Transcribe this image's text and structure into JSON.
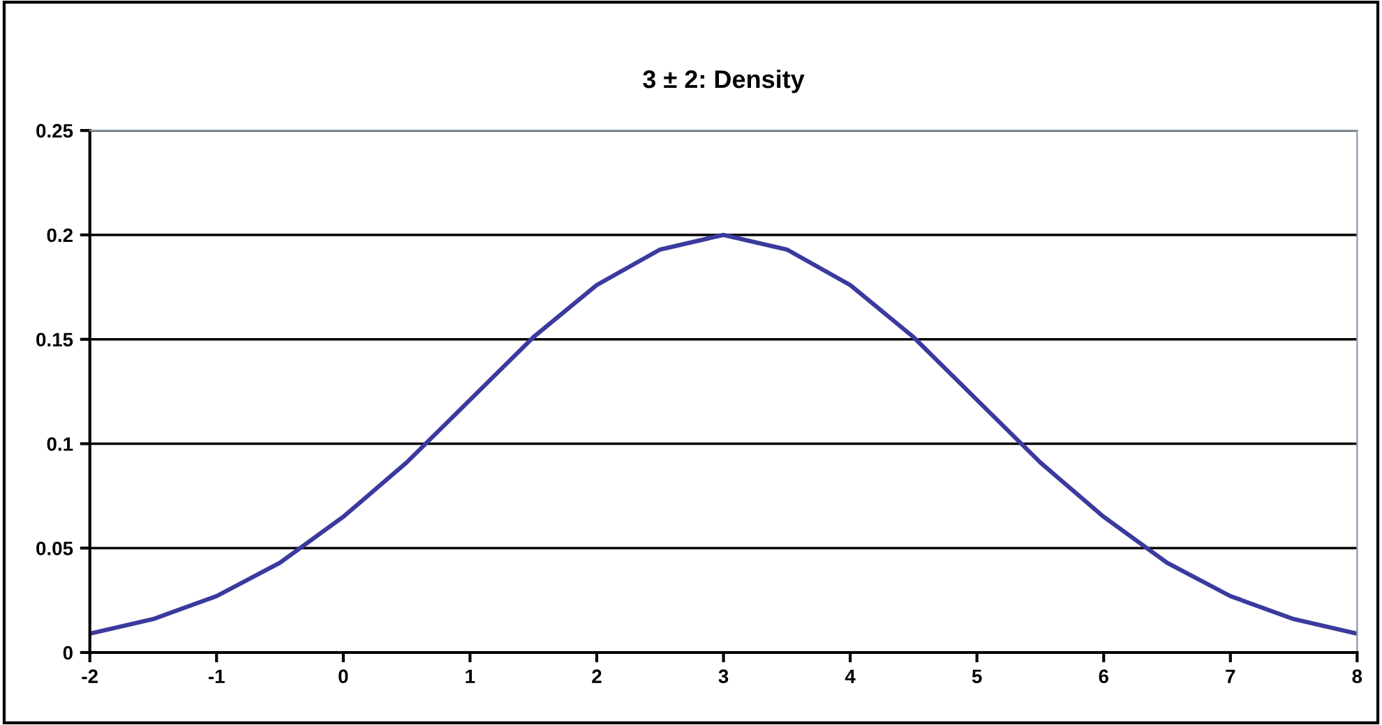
{
  "chart_data": {
    "type": "line",
    "title": "3 ± 2: Density",
    "x": [
      -2,
      -1.5,
      -1,
      -0.5,
      0,
      0.5,
      1,
      1.5,
      2,
      2.5,
      3,
      3.5,
      4,
      4.5,
      5,
      5.5,
      6,
      6.5,
      7,
      7.5,
      8
    ],
    "series": [
      {
        "color": "#3a3a9e",
        "values": [
          0.009,
          0.016,
          0.027,
          0.043,
          0.065,
          0.091,
          0.121,
          0.151,
          0.176,
          0.193,
          0.2,
          0.193,
          0.176,
          0.151,
          0.121,
          0.091,
          0.065,
          0.043,
          0.027,
          0.016,
          0.009
        ]
      }
    ],
    "xlim": [
      -2,
      8
    ],
    "xticks": [
      -2,
      -1,
      0,
      1,
      2,
      3,
      4,
      5,
      6,
      7,
      8
    ],
    "ylim": [
      0,
      0.25
    ],
    "yticks": [
      0,
      0.05,
      0.1,
      0.15,
      0.2,
      0.25
    ],
    "grid": "y",
    "legend": false,
    "marker": "none",
    "line_style": "solid"
  }
}
